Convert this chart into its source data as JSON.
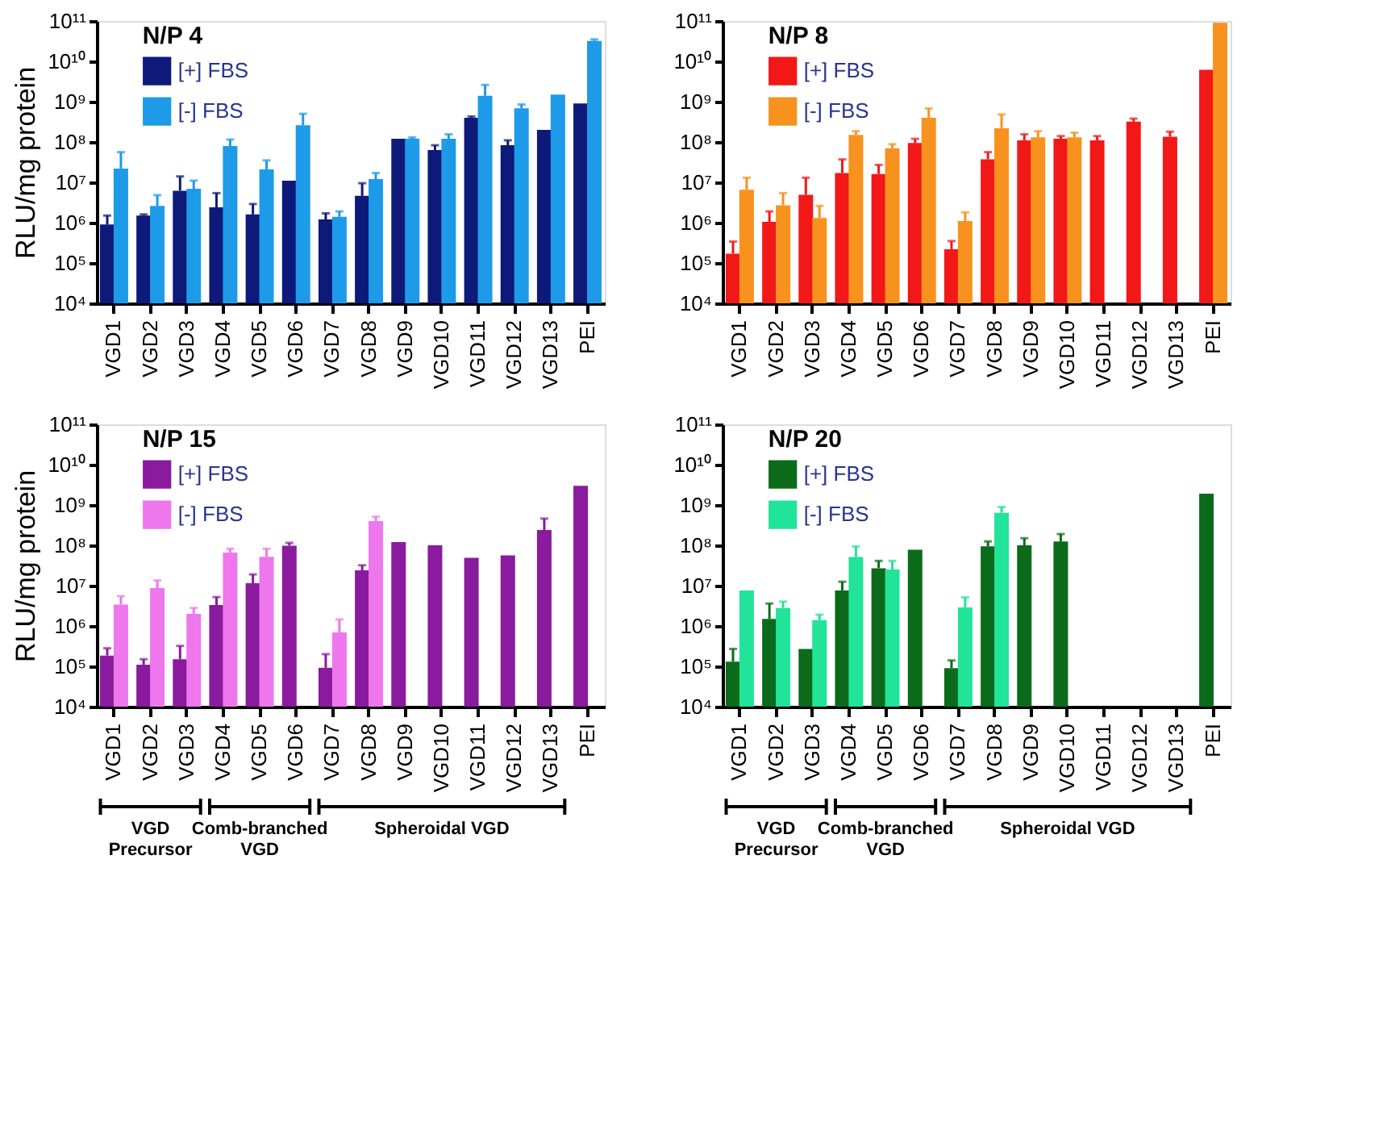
{
  "chart_data": [
    {
      "type": "bar",
      "legend_title": "N/P 4",
      "ylabel": "RLU/mg protein",
      "log": true,
      "legend": "top left",
      "grid": false,
      "categories": [
        "VGD1",
        "VGD2",
        "VGD3",
        "VGD4",
        "VGD5",
        "VGD6",
        "VGD7",
        "VGD8",
        "VGD9",
        "VGD10",
        "VGD11",
        "VGD12",
        "VGD13",
        "PEI"
      ],
      "ylim": [
        10000,
        100000000000
      ],
      "yticks": [
        {
          "value": 10000,
          "label": "10⁴"
        },
        {
          "value": 100000,
          "label": "10⁵"
        },
        {
          "value": 1000000,
          "label": "10⁶"
        },
        {
          "value": 10000000,
          "label": "10⁷"
        },
        {
          "value": 100000000,
          "label": "10⁸"
        },
        {
          "value": 1000000000,
          "label": "10⁹"
        },
        {
          "value": 10000000000,
          "label": "10¹⁰"
        },
        {
          "value": 100000000000,
          "label": "10¹¹"
        }
      ],
      "series": [
        {
          "name": "[+] FBS",
          "color": "#0d1a7a",
          "values": [
            900000,
            1500000,
            6200000,
            2400000,
            1600000,
            11000000,
            1200000,
            4600000,
            120000000,
            63000000,
            400000000,
            83000000,
            200000000,
            900000000
          ],
          "errors": [
            [
              900000,
              1500000
            ],
            [
              1500000,
              1600000
            ],
            [
              6200000,
              14000000
            ],
            [
              2400000,
              5400000
            ],
            [
              1600000,
              2900000
            ],
            null,
            [
              1200000,
              1700000
            ],
            [
              4600000,
              9500000
            ],
            null,
            [
              63000000,
              83000000
            ],
            [
              400000000,
              430000000
            ],
            [
              83000000,
              110000000
            ],
            null,
            null
          ]
        },
        {
          "name": "[-] FBS",
          "color": "#1e9be8",
          "values": [
            22000000,
            2600000,
            6900000,
            79000000,
            21000000,
            260000000,
            1400000,
            12000000,
            120000000,
            120000000,
            1400000000,
            680000000,
            1500000000,
            32000000000
          ],
          "errors": [
            [
              22000000,
              56000000
            ],
            [
              2600000,
              4800000
            ],
            [
              6900000,
              11000000
            ],
            [
              79000000,
              115000000
            ],
            [
              21000000,
              35000000
            ],
            [
              260000000,
              500000000
            ],
            [
              1400000,
              1900000
            ],
            [
              12000000,
              17000000
            ],
            [
              120000000,
              130000000
            ],
            [
              120000000,
              155000000
            ],
            [
              1400000000,
              2600000000
            ],
            [
              680000000,
              850000000
            ],
            null,
            [
              32000000000,
              35000000000
            ]
          ]
        }
      ]
    },
    {
      "type": "bar",
      "legend_title": "N/P 8",
      "log": true,
      "legend": "top left",
      "grid": false,
      "categories": [
        "VGD1",
        "VGD2",
        "VGD3",
        "VGD4",
        "VGD5",
        "VGD6",
        "VGD7",
        "VGD8",
        "VGD9",
        "VGD10",
        "VGD11",
        "VGD12",
        "VGD13",
        "PEI"
      ],
      "ylim": [
        10000,
        100000000000
      ],
      "yticks": [
        {
          "value": 10000,
          "label": "10⁴"
        },
        {
          "value": 100000,
          "label": "10⁵"
        },
        {
          "value": 1000000,
          "label": "10⁶"
        },
        {
          "value": 10000000,
          "label": "10⁷"
        },
        {
          "value": 100000000,
          "label": "10⁸"
        },
        {
          "value": 1000000000,
          "label": "10⁹"
        },
        {
          "value": 10000000000,
          "label": "10¹⁰"
        },
        {
          "value": 100000000000,
          "label": "10¹¹"
        }
      ],
      "series": [
        {
          "name": "[+] FBS",
          "color": "#f21818",
          "values": [
            170000,
            1050000,
            4900000,
            17000000,
            16000000,
            94000000,
            220000,
            37000000,
            110000000,
            120000000,
            110000000,
            320000000,
            135000000,
            6200000000
          ],
          "errors": [
            [
              170000,
              340000
            ],
            [
              1050000,
              1900000
            ],
            [
              4900000,
              13000000
            ],
            [
              17000000,
              37000000
            ],
            [
              16000000,
              27000000
            ],
            [
              94000000,
              120000000
            ],
            [
              220000,
              350000
            ],
            [
              37000000,
              56000000
            ],
            [
              110000000,
              155000000
            ],
            [
              120000000,
              140000000
            ],
            [
              110000000,
              140000000
            ],
            [
              320000000,
              380000000
            ],
            [
              135000000,
              180000000
            ],
            null
          ]
        },
        {
          "name": "[-] FBS",
          "color": "#f7921e",
          "values": [
            6500000,
            2700000,
            1300000,
            150000000,
            70000000,
            400000000,
            1100000,
            220000000,
            130000000,
            130000000,
            null,
            null,
            null,
            90000000000
          ],
          "errors": [
            [
              6500000,
              13000000
            ],
            [
              2700000,
              5400000
            ],
            [
              1300000,
              2600000
            ],
            [
              150000000,
              185000000
            ],
            [
              70000000,
              88000000
            ],
            [
              400000000,
              680000000
            ],
            [
              1100000,
              1800000
            ],
            [
              220000000,
              480000000
            ],
            [
              130000000,
              185000000
            ],
            [
              130000000,
              170000000
            ],
            null,
            null,
            null,
            null
          ]
        }
      ]
    },
    {
      "type": "bar",
      "legend_title": "N/P 15",
      "ylabel": "RLU/mg protein",
      "log": true,
      "legend": "top left",
      "grid": false,
      "categories": [
        "VGD1",
        "VGD2",
        "VGD3",
        "VGD4",
        "VGD5",
        "VGD6",
        "VGD7",
        "VGD8",
        "VGD9",
        "VGD10",
        "VGD11",
        "VGD12",
        "VGD13",
        "PEI"
      ],
      "ylim": [
        10000,
        100000000000
      ],
      "yticks": [
        {
          "value": 10000,
          "label": "10⁴"
        },
        {
          "value": 100000,
          "label": "10⁵"
        },
        {
          "value": 1000000,
          "label": "10⁶"
        },
        {
          "value": 10000000,
          "label": "10⁷"
        },
        {
          "value": 100000000,
          "label": "10⁸"
        },
        {
          "value": 1000000000,
          "label": "10⁹"
        },
        {
          "value": 10000000000,
          "label": "10¹⁰"
        },
        {
          "value": 100000000000,
          "label": "10¹¹"
        }
      ],
      "annotations": [
        "VGD Precursor",
        "Comb-branched VGD",
        "Spheroidal VGD"
      ],
      "series": [
        {
          "name": "[+] FBS",
          "color": "#8a1a9e",
          "values": [
            185000,
            110000,
            150000,
            3300000,
            11500000,
            98000000,
            92000,
            24000000,
            120000000,
            100000000,
            49000000,
            56000000,
            240000000,
            3000000000
          ],
          "errors": [
            [
              185000,
              280000
            ],
            [
              110000,
              150000
            ],
            [
              150000,
              320000
            ],
            [
              3300000,
              5200000
            ],
            [
              11500000,
              19000000
            ],
            [
              98000000,
              115000000
            ],
            [
              92000,
              200000
            ],
            [
              24000000,
              32000000
            ],
            null,
            null,
            null,
            null,
            [
              240000000,
              460000000
            ],
            null
          ]
        },
        {
          "name": "[-] FBS",
          "color": "#ee77ee",
          "values": [
            3400000,
            8700000,
            2000000,
            66000000,
            52000000,
            null,
            690000,
            400000000,
            null,
            null,
            null,
            null,
            null,
            null
          ],
          "errors": [
            [
              3400000,
              5500000
            ],
            [
              8700000,
              13500000
            ],
            [
              2000000,
              2800000
            ],
            [
              66000000,
              82000000
            ],
            [
              52000000,
              82000000
            ],
            null,
            [
              690000,
              1450000
            ],
            [
              400000000,
              510000000
            ],
            null,
            null,
            null,
            null,
            null,
            null
          ]
        }
      ]
    },
    {
      "type": "bar",
      "legend_title": "N/P 20",
      "log": true,
      "legend": "top left",
      "grid": false,
      "categories": [
        "VGD1",
        "VGD2",
        "VGD3",
        "VGD4",
        "VGD5",
        "VGD6",
        "VGD7",
        "VGD8",
        "VGD9",
        "VGD10",
        "VGD11",
        "VGD12",
        "VGD13",
        "PEI"
      ],
      "ylim": [
        10000,
        100000000000
      ],
      "yticks": [
        {
          "value": 10000,
          "label": "10⁴"
        },
        {
          "value": 100000,
          "label": "10⁵"
        },
        {
          "value": 1000000,
          "label": "10⁶"
        },
        {
          "value": 10000000,
          "label": "10⁷"
        },
        {
          "value": 100000000,
          "label": "10⁸"
        },
        {
          "value": 1000000000,
          "label": "10⁹"
        },
        {
          "value": 10000000000,
          "label": "10¹⁰"
        },
        {
          "value": 100000000000,
          "label": "10¹¹"
        }
      ],
      "annotations": [
        "VGD Precursor",
        "Comb-branched VGD",
        "Spheroidal VGD"
      ],
      "series": [
        {
          "name": "[+] FBS",
          "color": "#0b6b1a",
          "values": [
            130000,
            1500000,
            270000,
            7600000,
            27000000,
            78000000,
            90000,
            94000000,
            100000000,
            125000000,
            null,
            null,
            null,
            1900000000
          ],
          "errors": [
            [
              130000,
              270000
            ],
            [
              1500000,
              3600000
            ],
            null,
            [
              7600000,
              12500000
            ],
            [
              27000000,
              41000000
            ],
            null,
            [
              90000,
              140000
            ],
            [
              94000000,
              125000000
            ],
            [
              100000000,
              150000000
            ],
            [
              125000000,
              190000000
            ],
            null,
            null,
            null,
            null
          ]
        },
        {
          "name": "[-] FBS",
          "color": "#22e39a",
          "values": [
            7600000,
            2800000,
            1400000,
            51000000,
            25000000,
            null,
            2900000,
            640000000,
            null,
            null,
            null,
            null,
            null,
            null
          ],
          "errors": [
            null,
            [
              2800000,
              4000000
            ],
            [
              1400000,
              1900000
            ],
            [
              51000000,
              94000000
            ],
            [
              25000000,
              41000000
            ],
            null,
            [
              2900000,
              5100000
            ],
            [
              640000000,
              890000000
            ],
            null,
            null,
            null,
            null,
            null,
            null
          ]
        }
      ]
    }
  ]
}
